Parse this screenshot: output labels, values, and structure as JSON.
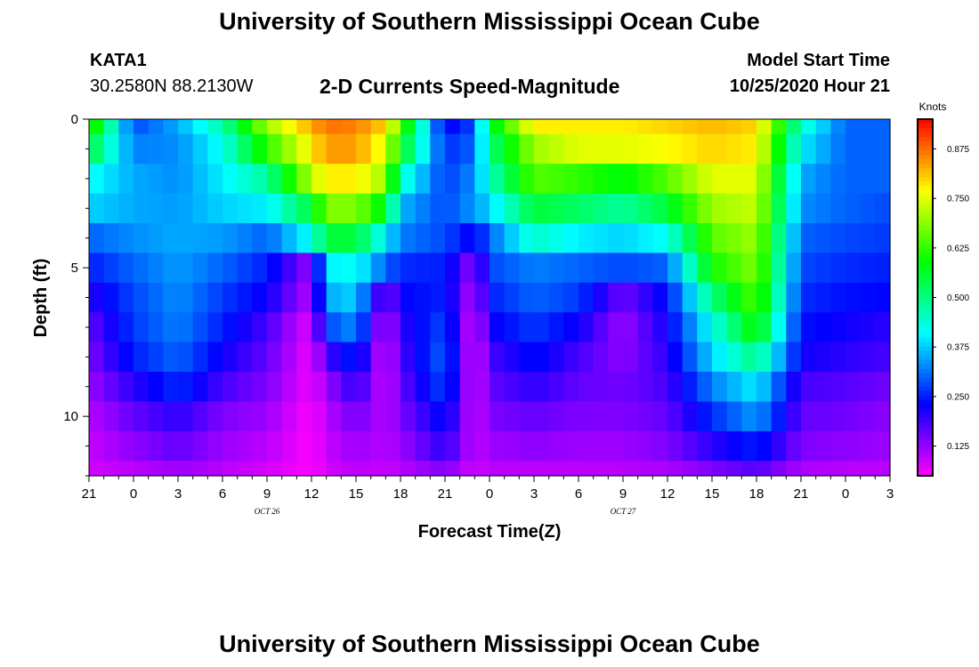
{
  "header": {
    "title": "University of Southern Mississippi Ocean Cube",
    "station_id": "KATA1",
    "station_coords": "30.2580N 88.2130W",
    "subtitle": "2-D Currents Speed-Magnitude",
    "model_start_label": "Model Start Time",
    "model_start_value": "10/25/2020 Hour 21"
  },
  "footer": {
    "title": "University of Southern Mississippi Ocean Cube"
  },
  "chart_data": {
    "type": "heatmap",
    "title": "2-D Currents Speed-Magnitude",
    "xlabel": "Forecast Time(Z)",
    "ylabel": "Depth (ft)",
    "x_tick_labels": [
      "21",
      "0",
      "3",
      "6",
      "9",
      "12",
      "15",
      "18",
      "21",
      "0",
      "3",
      "6",
      "9",
      "12",
      "15",
      "18",
      "21",
      "0",
      "3"
    ],
    "x_range_hours": [
      0,
      54
    ],
    "date_labels": [
      {
        "text": "OCT 26",
        "hour": 15
      },
      {
        "text": "OCT 27",
        "hour": 39
      }
    ],
    "y_ticks": [
      0,
      5,
      10
    ],
    "y_range_ft": [
      0,
      12
    ],
    "y_axis_inverted": true,
    "colorbar": {
      "label": "Knots",
      "range": [
        0.05,
        0.95
      ],
      "ticks": [
        "0.125",
        "0.250",
        "0.375",
        "0.500",
        "0.625",
        "0.750",
        "0.875"
      ],
      "tick_values": [
        0.125,
        0.25,
        0.375,
        0.5,
        0.625,
        0.75,
        0.875
      ]
    },
    "depth_layers_ft": [
      0,
      0.5,
      1.5,
      2.5,
      3.5,
      4.5,
      5.5,
      6.5,
      7.5,
      8.5,
      9.5,
      10.5,
      11.5,
      12
    ],
    "time_hours": [
      0,
      3,
      6,
      9,
      12,
      15,
      16,
      18,
      20,
      21,
      24,
      26,
      27,
      30,
      33,
      36,
      39,
      42,
      45,
      48,
      51,
      54
    ],
    "speed_knots": [
      [
        0.65,
        0.28,
        0.35,
        0.47,
        0.7,
        0.83,
        0.87,
        0.86,
        0.8,
        0.65,
        0.22,
        0.28,
        0.55,
        0.78,
        0.78,
        0.78,
        0.8,
        0.82,
        0.8,
        0.45,
        0.3,
        0.3
      ],
      [
        0.55,
        0.32,
        0.33,
        0.42,
        0.62,
        0.78,
        0.84,
        0.84,
        0.75,
        0.58,
        0.26,
        0.3,
        0.5,
        0.7,
        0.75,
        0.75,
        0.77,
        0.8,
        0.78,
        0.4,
        0.3,
        0.3
      ],
      [
        0.42,
        0.35,
        0.33,
        0.4,
        0.48,
        0.72,
        0.78,
        0.78,
        0.7,
        0.45,
        0.27,
        0.33,
        0.45,
        0.65,
        0.62,
        0.58,
        0.65,
        0.75,
        0.75,
        0.35,
        0.3,
        0.3
      ],
      [
        0.38,
        0.35,
        0.34,
        0.38,
        0.4,
        0.55,
        0.68,
        0.68,
        0.57,
        0.36,
        0.28,
        0.34,
        0.38,
        0.55,
        0.52,
        0.48,
        0.55,
        0.7,
        0.73,
        0.33,
        0.3,
        0.28
      ],
      [
        0.3,
        0.33,
        0.35,
        0.34,
        0.3,
        0.42,
        0.55,
        0.55,
        0.4,
        0.32,
        0.28,
        0.22,
        0.3,
        0.45,
        0.4,
        0.38,
        0.42,
        0.65,
        0.7,
        0.3,
        0.28,
        0.27
      ],
      [
        0.25,
        0.3,
        0.34,
        0.3,
        0.25,
        0.12,
        0.4,
        0.42,
        0.3,
        0.26,
        0.25,
        0.12,
        0.28,
        0.32,
        0.3,
        0.28,
        0.3,
        0.6,
        0.68,
        0.28,
        0.26,
        0.25
      ],
      [
        0.2,
        0.28,
        0.33,
        0.27,
        0.22,
        0.1,
        0.35,
        0.38,
        0.12,
        0.23,
        0.25,
        0.09,
        0.25,
        0.3,
        0.27,
        0.15,
        0.24,
        0.5,
        0.65,
        0.26,
        0.24,
        0.23
      ],
      [
        0.16,
        0.27,
        0.32,
        0.25,
        0.18,
        0.07,
        0.28,
        0.33,
        0.08,
        0.2,
        0.28,
        0.06,
        0.22,
        0.27,
        0.22,
        0.12,
        0.22,
        0.42,
        0.6,
        0.24,
        0.22,
        0.2
      ],
      [
        0.14,
        0.25,
        0.3,
        0.22,
        0.16,
        0.06,
        0.18,
        0.26,
        0.07,
        0.18,
        0.3,
        0.06,
        0.18,
        0.24,
        0.18,
        0.13,
        0.2,
        0.38,
        0.5,
        0.22,
        0.2,
        0.18
      ],
      [
        0.12,
        0.2,
        0.26,
        0.18,
        0.14,
        0.06,
        0.12,
        0.2,
        0.08,
        0.16,
        0.28,
        0.07,
        0.16,
        0.2,
        0.16,
        0.15,
        0.18,
        0.32,
        0.4,
        0.18,
        0.17,
        0.15
      ],
      [
        0.1,
        0.16,
        0.2,
        0.14,
        0.12,
        0.05,
        0.1,
        0.15,
        0.1,
        0.14,
        0.24,
        0.08,
        0.14,
        0.16,
        0.14,
        0.14,
        0.16,
        0.26,
        0.34,
        0.16,
        0.15,
        0.13
      ],
      [
        0.09,
        0.13,
        0.16,
        0.12,
        0.1,
        0.05,
        0.09,
        0.12,
        0.1,
        0.12,
        0.2,
        0.09,
        0.12,
        0.13,
        0.12,
        0.12,
        0.14,
        0.2,
        0.25,
        0.14,
        0.13,
        0.12
      ],
      [
        0.08,
        0.1,
        0.12,
        0.1,
        0.08,
        0.05,
        0.08,
        0.1,
        0.09,
        0.1,
        0.14,
        0.08,
        0.1,
        0.1,
        0.1,
        0.1,
        0.11,
        0.14,
        0.17,
        0.11,
        0.1,
        0.1
      ]
    ]
  }
}
